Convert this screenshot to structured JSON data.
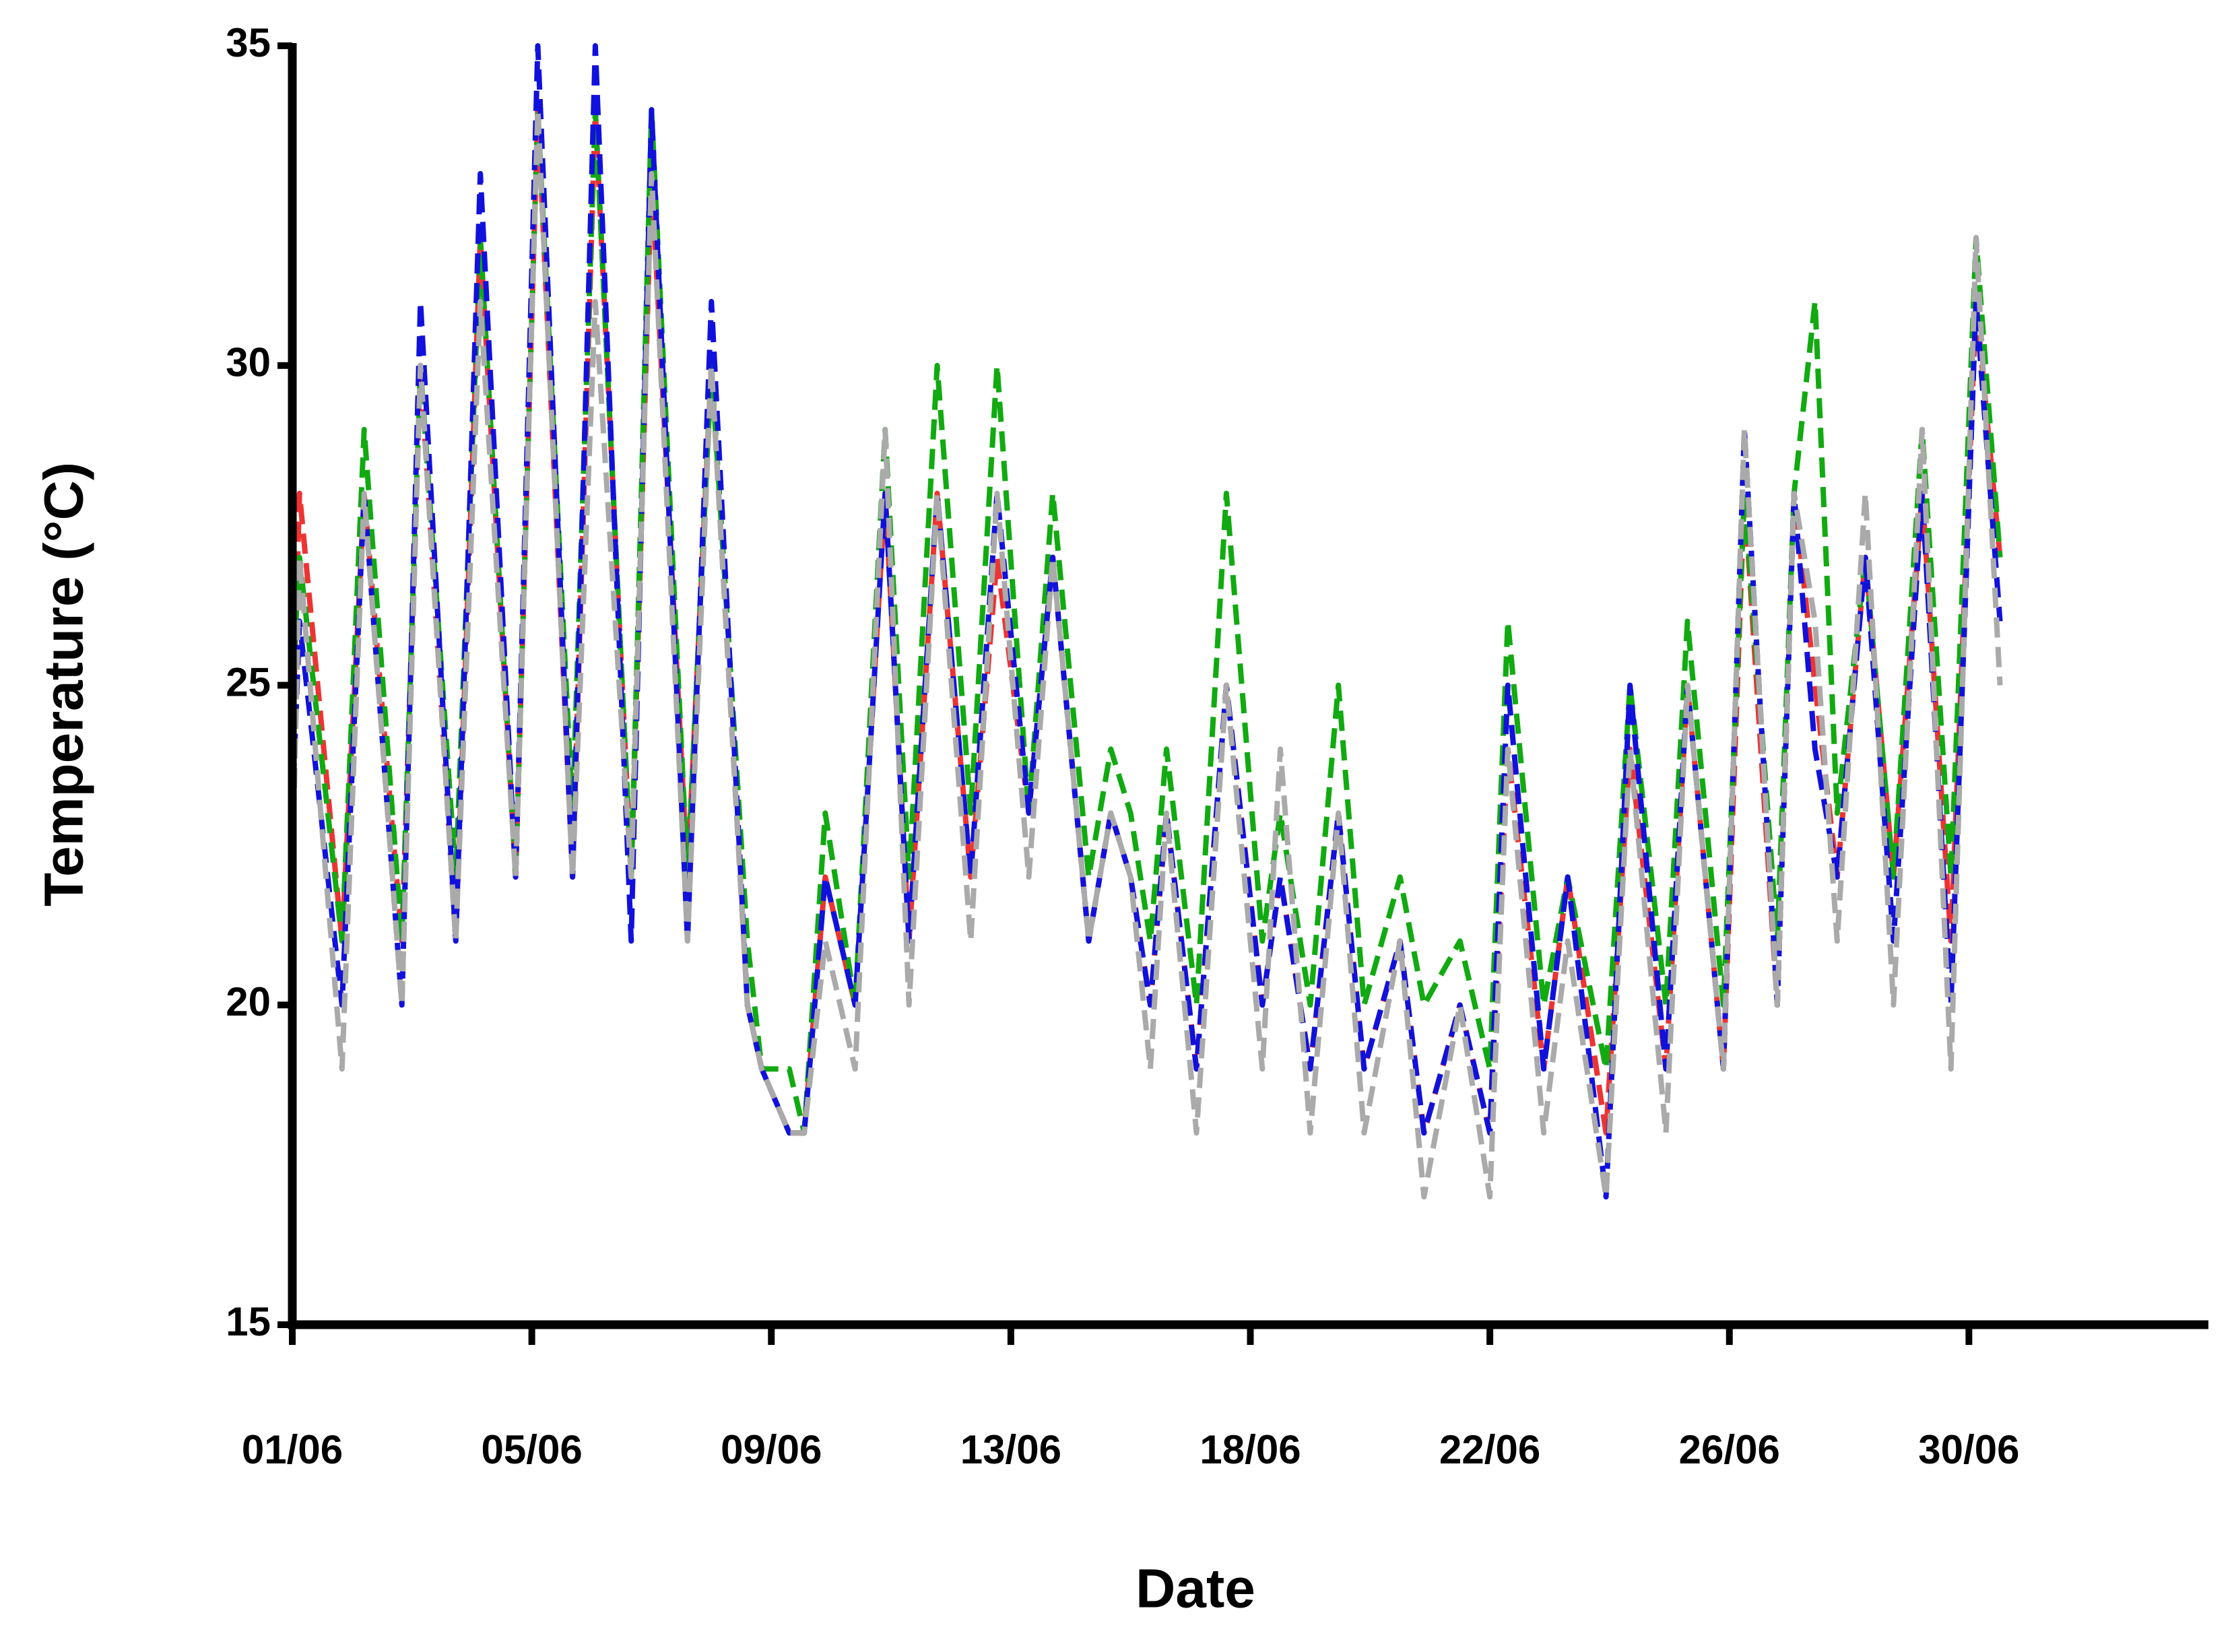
{
  "chart_data": {
    "type": "line",
    "x_label": "Date",
    "y_label": "Temperature (°C)",
    "xlim": [
      0,
      32
    ],
    "ylim": [
      15,
      35
    ],
    "yticks": [
      15,
      20,
      25,
      30,
      35
    ],
    "xticks": [
      {
        "value": 0,
        "label": "01/06"
      },
      {
        "value": 4,
        "label": "05/06"
      },
      {
        "value": 8,
        "label": "09/06"
      },
      {
        "value": 12,
        "label": "13/06"
      },
      {
        "value": 16,
        "label": "18/06"
      },
      {
        "value": 20,
        "label": "22/06"
      },
      {
        "value": 24,
        "label": "26/06"
      },
      {
        "value": 28,
        "label": "30/06"
      }
    ],
    "grid": false,
    "dashed": true,
    "x": [
      0,
      0.12,
      0.83,
      1.2,
      1.83,
      2.14,
      2.73,
      3.14,
      3.73,
      4.1,
      4.68,
      5.06,
      5.66,
      6.0,
      6.6,
      7.0,
      7.6,
      7.84,
      8.3,
      8.55,
      8.9,
      9.4,
      9.9,
      10.3,
      10.77,
      11.33,
      11.77,
      12.3,
      12.7,
      13.3,
      13.67,
      14.0,
      14.33,
      14.6,
      15.1,
      15.6,
      16.2,
      16.5,
      17.0,
      17.47,
      17.9,
      18.5,
      18.9,
      19.5,
      20.0,
      20.3,
      20.9,
      21.3,
      21.94,
      22.34,
      22.94,
      23.3,
      23.9,
      24.25,
      24.8,
      25.08,
      25.43,
      25.8,
      26.27,
      26.74,
      27.22,
      27.7,
      28.12,
      28.52
    ],
    "series": [
      {
        "color": "#ee3333",
        "values": [
          24,
          28,
          21,
          28,
          21,
          30,
          21,
          32,
          22,
          34,
          22,
          34,
          22,
          33,
          22,
          30,
          20,
          19,
          18,
          18,
          22,
          20,
          28,
          21,
          28,
          22,
          27,
          23,
          27,
          21,
          23,
          22,
          20,
          23,
          19,
          25,
          20,
          22,
          19,
          23,
          19,
          21,
          18,
          20,
          18,
          24,
          19,
          22,
          18,
          24,
          19,
          25,
          19,
          28,
          20,
          28,
          25,
          22,
          27,
          22,
          28,
          21,
          31,
          27
        ]
      },
      {
        "color": "#11aa11",
        "values": [
          25,
          27,
          21,
          29,
          21,
          30,
          22,
          32,
          22,
          34,
          23,
          34,
          22,
          34,
          22,
          30,
          21,
          19,
          19,
          18,
          23,
          20,
          29,
          22,
          30,
          23,
          30,
          23,
          28,
          22,
          24,
          23,
          21,
          24,
          20,
          28,
          21,
          23,
          20,
          25,
          20,
          22,
          20,
          21,
          19,
          26,
          20,
          22,
          19,
          25,
          20,
          26,
          20,
          28,
          21,
          28,
          31,
          23,
          27,
          22,
          29,
          22,
          32,
          27
        ]
      },
      {
        "color": "#1111dd",
        "values": [
          23,
          26,
          20,
          28,
          20,
          31,
          21,
          33,
          22,
          35,
          22,
          35,
          21,
          34,
          21,
          31,
          20,
          19,
          18,
          18,
          22,
          20,
          28,
          21,
          28,
          22,
          28,
          23,
          27,
          21,
          23,
          22,
          20,
          23,
          19,
          25,
          20,
          22,
          19,
          23,
          19,
          21,
          18,
          20,
          18,
          25,
          19,
          22,
          17,
          25,
          19,
          25,
          19,
          29,
          20,
          28,
          24,
          22,
          27,
          21,
          28,
          20,
          31,
          26
        ]
      },
      {
        "color": "#aaaaaa",
        "values": [
          22,
          27,
          19,
          28,
          20,
          30,
          21,
          31,
          22,
          34,
          22,
          31,
          22,
          33,
          21,
          30,
          20,
          19,
          18,
          18,
          21,
          19,
          29,
          20,
          28,
          21,
          28,
          22,
          27,
          21,
          23,
          22,
          19,
          23,
          18,
          25,
          19,
          24,
          18,
          23,
          18,
          21,
          17,
          20,
          17,
          24,
          18,
          21,
          17,
          24,
          18,
          25,
          19,
          29,
          20,
          28,
          26,
          21,
          28,
          20,
          29,
          19,
          32,
          25
        ]
      }
    ]
  }
}
